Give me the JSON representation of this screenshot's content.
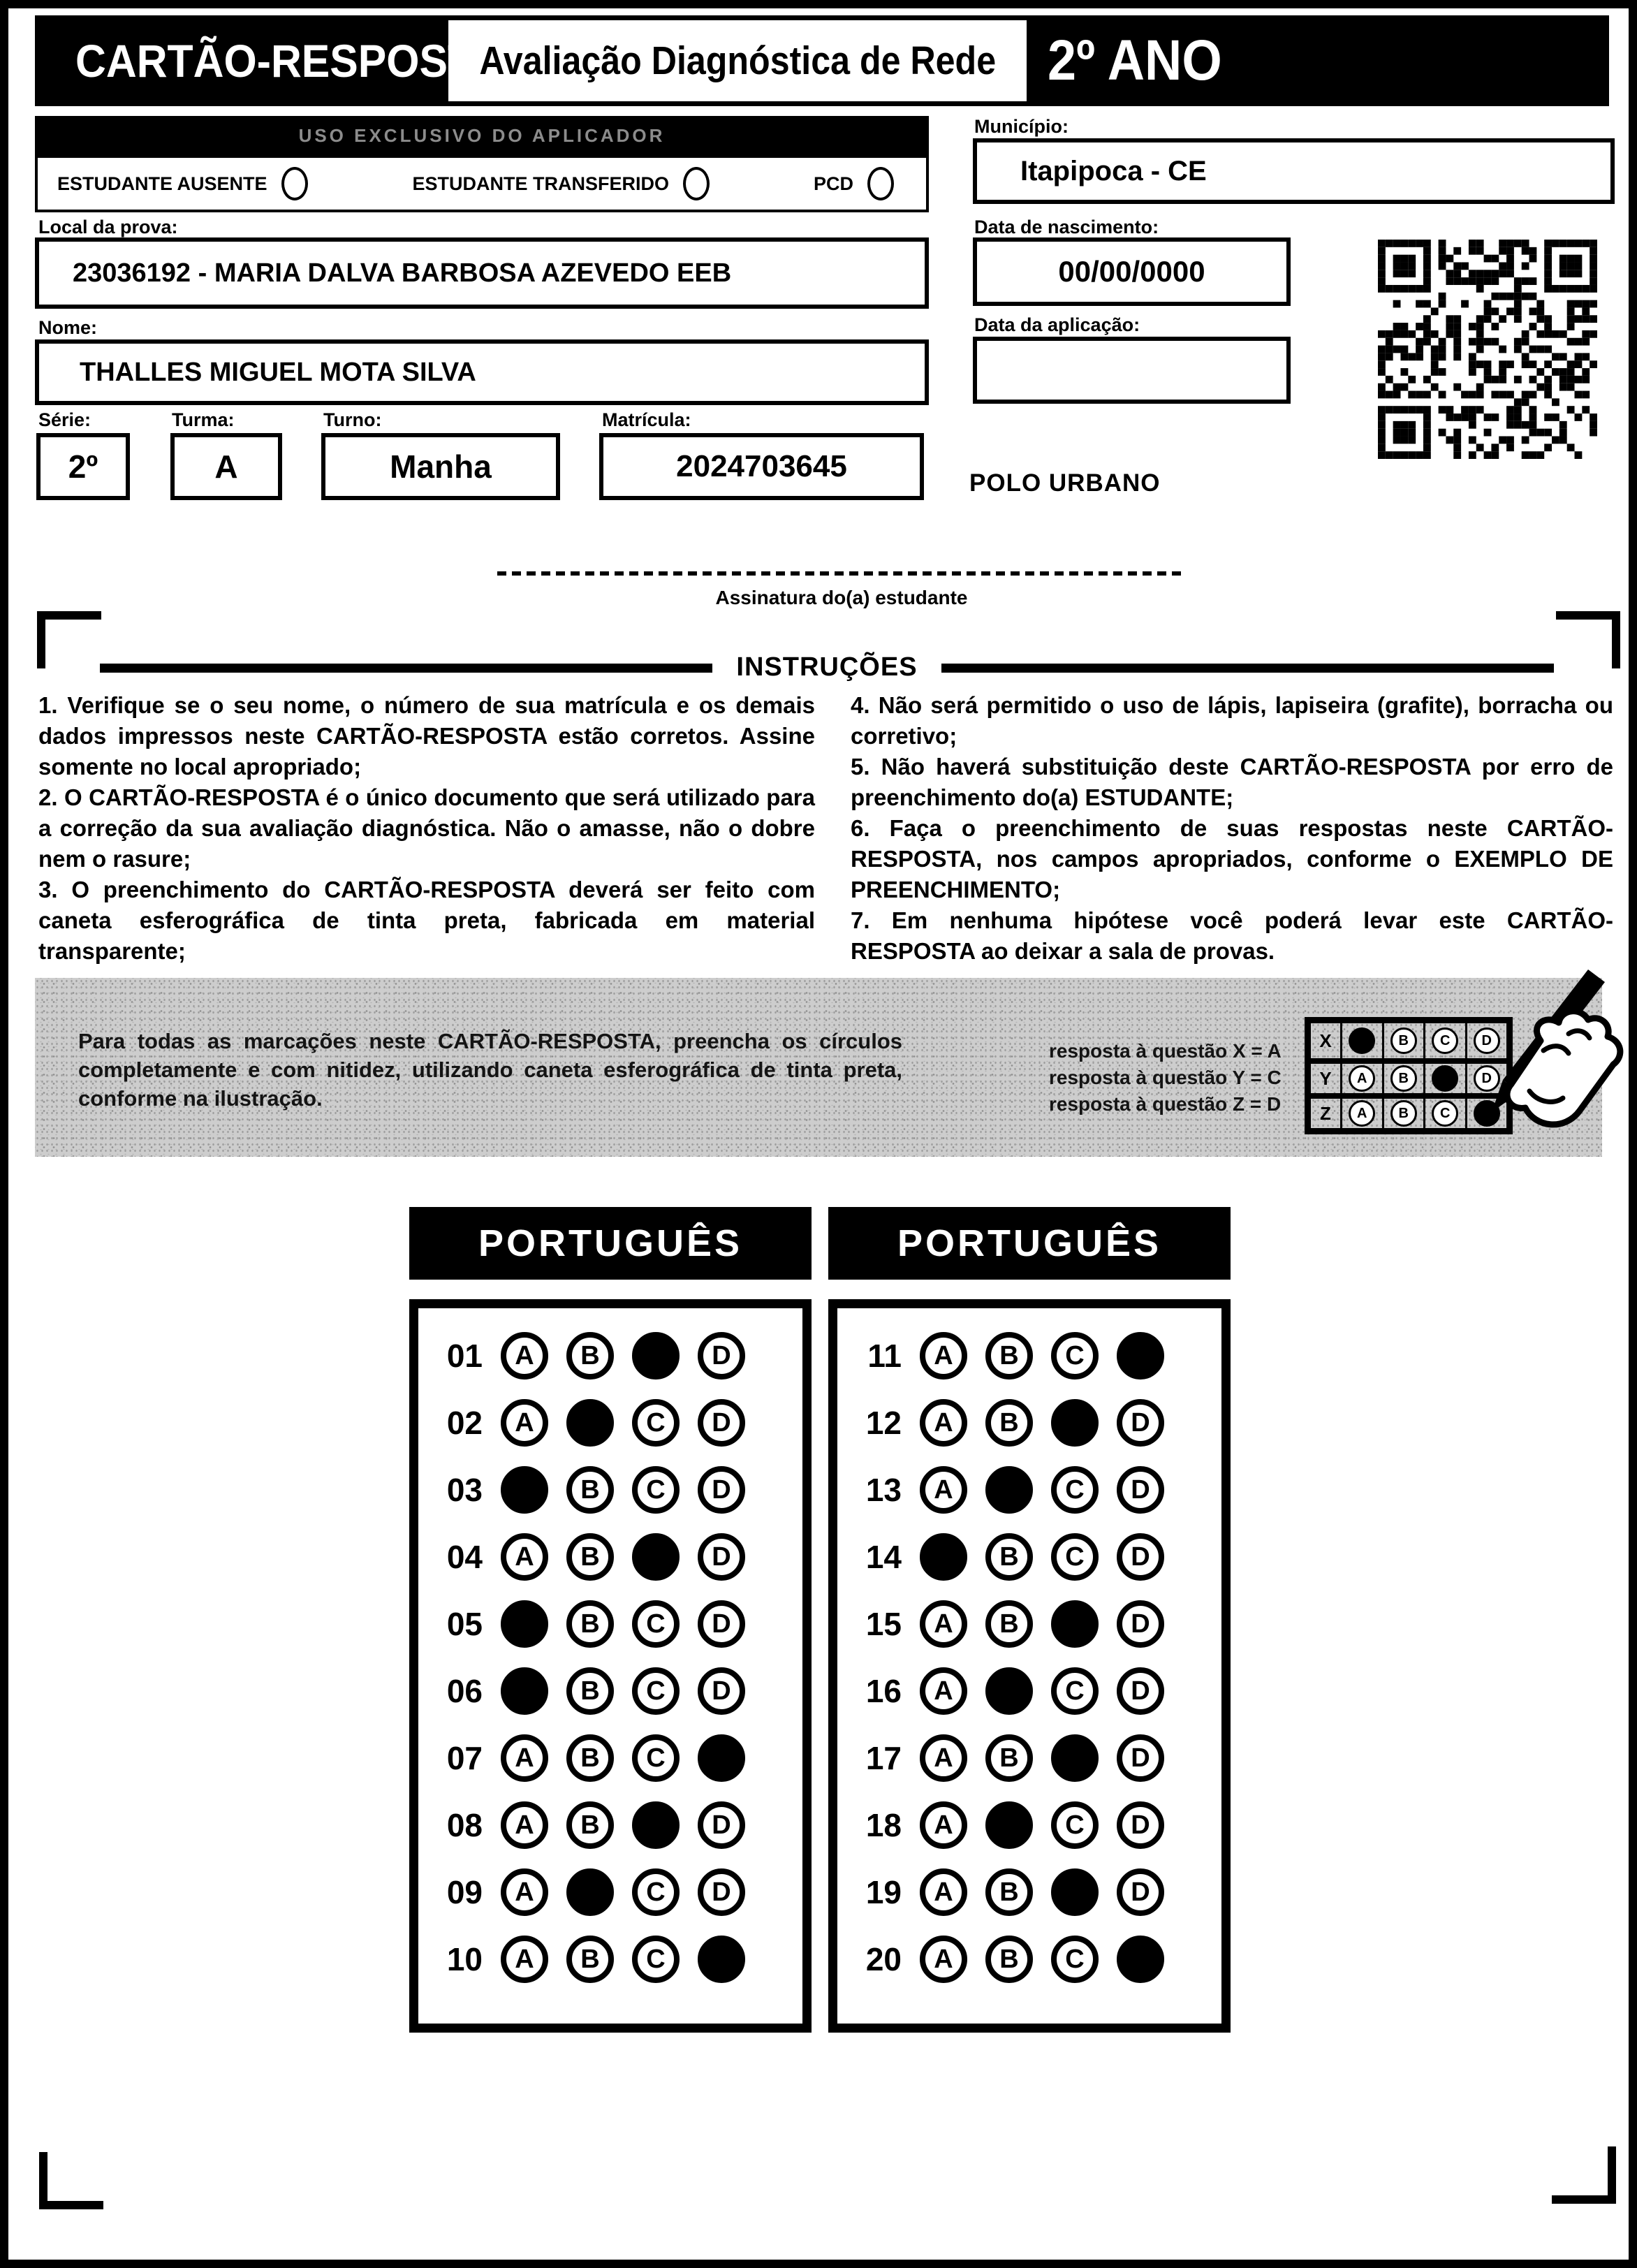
{
  "header": {
    "title": "CARTÃO-RESPOSTA",
    "subtitle": "Avaliação Diagnóstica de Rede",
    "grade": "2º ANO"
  },
  "aplicador": {
    "bar": "USO EXCLUSIVO DO APLICADOR",
    "options": [
      "ESTUDANTE AUSENTE",
      "ESTUDANTE TRANSFERIDO",
      "PCD"
    ]
  },
  "fields": {
    "municipio": {
      "label": "Município:",
      "value": "Itapipoca - CE"
    },
    "local": {
      "label": "Local da prova:",
      "value": "23036192 - MARIA DALVA BARBOSA AZEVEDO EEB"
    },
    "nascimento": {
      "label": "Data de nascimento:",
      "value": "00/00/0000"
    },
    "nome": {
      "label": "Nome:",
      "value": "THALLES MIGUEL MOTA SILVA"
    },
    "aplicacao": {
      "label": "Data da aplicação:",
      "value": ""
    },
    "serie": {
      "label": "Série:",
      "value": "2º"
    },
    "turma": {
      "label": "Turma:",
      "value": "A"
    },
    "turno": {
      "label": "Turno:",
      "value": "Manha"
    },
    "matricula": {
      "label": "Matrícula:",
      "value": "2024703645"
    },
    "polo": "POLO URBANO"
  },
  "signature_label": "Assinatura do(a) estudante",
  "instructions": {
    "title": "INSTRUÇÕES",
    "left": [
      "1. Verifique se o seu nome, o número de sua matrícula e os demais dados impressos neste CARTÃO-RESPOSTA estão corretos. Assine somente no local apropriado;",
      "2. O CARTÃO-RESPOSTA é o único documento que será utilizado para a correção da sua avaliação diagnóstica. Não o amasse, não o dobre nem o rasure;",
      "3. O preenchimento do CARTÃO-RESPOSTA deverá ser feito com caneta esferográfica de tinta preta, fabricada em material transparente;"
    ],
    "right": [
      "4. Não será permitido o uso de lápis, lapiseira (grafite), borracha ou corretivo;",
      "5. Não haverá substituição deste CARTÃO-RESPOSTA por erro de preenchimento do(a) ESTUDANTE;",
      "6. Faça o preenchimento de suas respostas neste CARTÃO-RESPOSTA, nos campos apropriados, conforme o EXEMPLO DE PREENCHIMENTO;",
      "7. Em nenhuma hipótese você poderá levar este CARTÃO-RESPOSTA ao deixar a sala de provas."
    ]
  },
  "example": {
    "text": "Para todas as marcações neste CARTÃO-RESPOSTA, preencha os círculos completamente e com nitidez, utilizando caneta esferográfica de tinta preta, conforme na ilustração.",
    "notes": [
      "resposta à questão X = A",
      "resposta à questão Y = C",
      "resposta à questão Z = D"
    ],
    "options": [
      "A",
      "B",
      "C",
      "D"
    ],
    "rows": [
      {
        "label": "X",
        "filled": "A"
      },
      {
        "label": "Y",
        "filled": "C"
      },
      {
        "label": "Z",
        "filled": "D"
      }
    ]
  },
  "answers": {
    "options": [
      "A",
      "B",
      "C",
      "D"
    ],
    "sections": [
      {
        "title": "PORTUGUÊS",
        "questions": [
          {
            "num": "01",
            "marked": "C"
          },
          {
            "num": "02",
            "marked": "B"
          },
          {
            "num": "03",
            "marked": "A"
          },
          {
            "num": "04",
            "marked": "C"
          },
          {
            "num": "05",
            "marked": "A"
          },
          {
            "num": "06",
            "marked": "A"
          },
          {
            "num": "07",
            "marked": "D"
          },
          {
            "num": "08",
            "marked": "C"
          },
          {
            "num": "09",
            "marked": "B"
          },
          {
            "num": "10",
            "marked": "D"
          }
        ]
      },
      {
        "title": "PORTUGUÊS",
        "questions": [
          {
            "num": "11",
            "marked": "D"
          },
          {
            "num": "12",
            "marked": "C"
          },
          {
            "num": "13",
            "marked": "B"
          },
          {
            "num": "14",
            "marked": "A"
          },
          {
            "num": "15",
            "marked": "C"
          },
          {
            "num": "16",
            "marked": "B"
          },
          {
            "num": "17",
            "marked": "C"
          },
          {
            "num": "18",
            "marked": "B"
          },
          {
            "num": "19",
            "marked": "C"
          },
          {
            "num": "20",
            "marked": "D"
          }
        ]
      }
    ]
  }
}
